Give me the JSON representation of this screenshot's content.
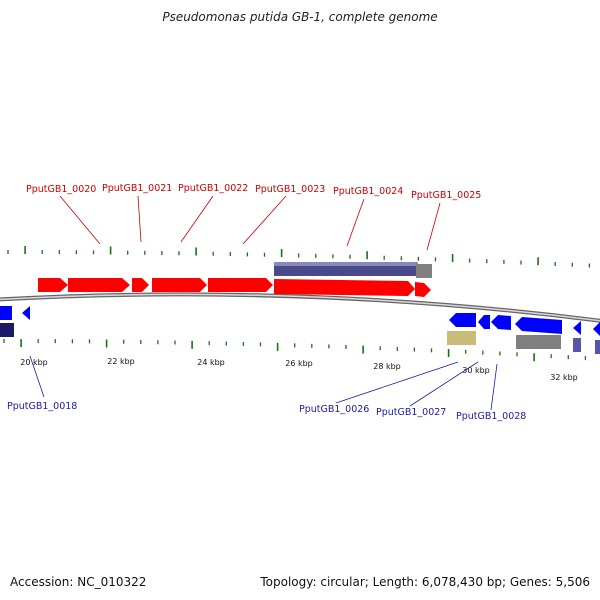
{
  "title": "Pseudomonas putida GB-1, complete genome",
  "footer": {
    "accession": "Accession: NC_010322",
    "summary": "Topology: circular; Length: 6,078,430 bp; Genes: 5,506"
  },
  "colors": {
    "forward_gene": "#ff0000",
    "reverse_gene": "#0000ff",
    "forward_label": "#cc0000",
    "reverse_label": "#1a1aaa",
    "tick": "#117711",
    "backbone": "#777777",
    "feature_slate": "#4a4a8a",
    "feature_gray": "#808080",
    "feature_khaki": "#c8bc78",
    "feature_navy": "#1a1a66"
  },
  "scale_labels": [
    "20 kbp",
    "22 kbp",
    "24 kbp",
    "26 kbp",
    "28 kbp",
    "30 kbp",
    "32 kbp"
  ],
  "forward_labels": [
    "PputGB1_0020",
    "PputGB1_0021",
    "PputGB1_0022",
    "PputGB1_0023",
    "PputGB1_0024",
    "PputGB1_0025"
  ],
  "reverse_labels": [
    "PputGB1_0018",
    "PputGB1_0026",
    "PputGB1_0027",
    "PputGB1_0028"
  ]
}
